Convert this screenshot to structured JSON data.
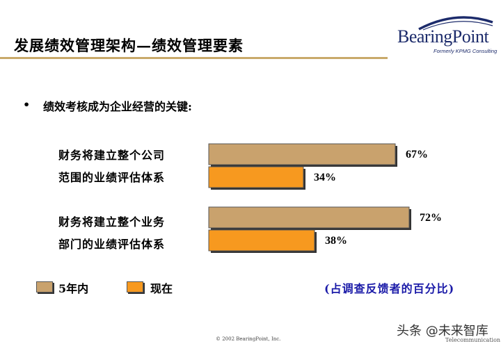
{
  "header": {
    "title": "发展绩效管理架构—绩效管理要素",
    "logo_name": "BearingPoint",
    "logo_sub": "Formerly KPMG Consulting"
  },
  "bullet": "绩效考核成为企业经营的关键:",
  "legend": {
    "item1": "5年内",
    "item2": "现在"
  },
  "note": "(占调查反馈者的百分比)",
  "footer": "© 2002 BearingPoint, Inc.",
  "watermark": {
    "main": "头条 @未来智库",
    "sub": "Telecommunication"
  },
  "colors": {
    "five_years": "#c9a26d",
    "now": "#f7991f",
    "title_rule": "#c9a96a",
    "note": "#1a1aa8",
    "logo": "#1c2b6b"
  },
  "chart_data": {
    "type": "bar",
    "orientation": "horizontal",
    "categories": [
      [
        "财务将建立整个公司",
        "范围的业绩评估体系"
      ],
      [
        "财务将建立整个业务",
        "部门的业绩评估体系"
      ]
    ],
    "series": [
      {
        "name": "5年内",
        "values": [
          67,
          72
        ],
        "labels": [
          "67%",
          "72%"
        ]
      },
      {
        "name": "现在",
        "values": [
          34,
          38
        ],
        "labels": [
          "34%",
          "38%"
        ]
      }
    ],
    "unit": "%",
    "xlim": [
      0,
      100
    ],
    "grid": false,
    "legend_position": "bottom-left"
  }
}
